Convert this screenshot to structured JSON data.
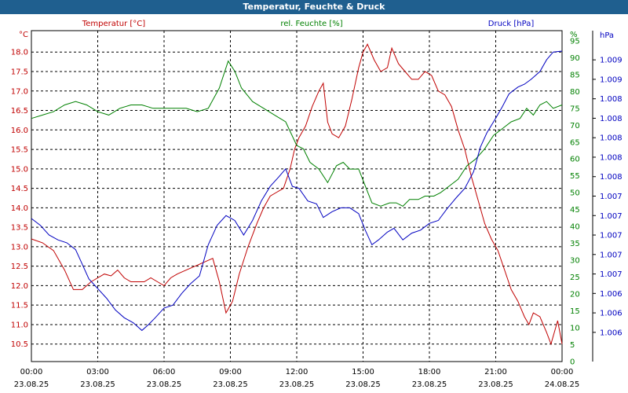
{
  "window": {
    "title": "Temperatur, Feuchte & Druck"
  },
  "chart_data": {
    "type": "line",
    "title": "Temperatur, Feuchte & Druck",
    "x": {
      "range_hours": [
        0,
        24
      ],
      "ticks": [
        {
          "hour": 0,
          "time": "00:00",
          "date": "23.08.25"
        },
        {
          "hour": 3,
          "time": "03:00",
          "date": "23.08.25"
        },
        {
          "hour": 6,
          "time": "06:00",
          "date": "23.08.25"
        },
        {
          "hour": 9,
          "time": "09:00",
          "date": "23.08.25"
        },
        {
          "hour": 12,
          "time": "12:00",
          "date": "23.08.25"
        },
        {
          "hour": 15,
          "time": "15:00",
          "date": "23.08.25"
        },
        {
          "hour": 18,
          "time": "18:00",
          "date": "23.08.25"
        },
        {
          "hour": 21,
          "time": "21:00",
          "date": "23.08.25"
        },
        {
          "hour": 24,
          "time": "00:00",
          "date": "24.08.25"
        }
      ]
    },
    "axes": {
      "temperature": {
        "unit": "°C",
        "label": "Temperatur [°C]",
        "color": "#c00000",
        "range": [
          10.05,
          18.55
        ],
        "ticks": [
          "10.5",
          "11.0",
          "11.5",
          "12.0",
          "12.5",
          "13.0",
          "13.5",
          "14.0",
          "14.5",
          "15.0",
          "15.5",
          "16.0",
          "16.5",
          "17.0",
          "17.5",
          "18.0"
        ]
      },
      "humidity": {
        "unit": "%",
        "label": "rel. Feuchte [%]",
        "color": "#008000",
        "range": [
          0,
          98
        ],
        "ticks": [
          "0",
          "5",
          "10",
          "15",
          "20",
          "25",
          "30",
          "35",
          "40",
          "45",
          "50",
          "55",
          "60",
          "65",
          "70",
          "75",
          "80",
          "85",
          "90",
          "95",
          "%"
        ]
      },
      "pressure": {
        "unit": "hPa",
        "label": "Druck [hPa]",
        "color": "#0000c0",
        "range": [
          1.0058,
          1.0092
        ],
        "ticks": [
          {
            "v": 1.0061,
            "t": "1.006"
          },
          {
            "v": 1.0063,
            "t": "1.006"
          },
          {
            "v": 1.0065,
            "t": "1.006"
          },
          {
            "v": 1.0067,
            "t": "1.007"
          },
          {
            "v": 1.0069,
            "t": "1.007"
          },
          {
            "v": 1.0071,
            "t": "1.007"
          },
          {
            "v": 1.0073,
            "t": "1.007"
          },
          {
            "v": 1.0075,
            "t": "1.007"
          },
          {
            "v": 1.0077,
            "t": "1.008"
          },
          {
            "v": 1.0079,
            "t": "1.008"
          },
          {
            "v": 1.0081,
            "t": "1.008"
          },
          {
            "v": 1.0083,
            "t": "1.008"
          },
          {
            "v": 1.0085,
            "t": "1.008"
          },
          {
            "v": 1.0087,
            "t": "1.009"
          },
          {
            "v": 1.0089,
            "t": "1.009"
          }
        ],
        "unit_label": "hPa"
      }
    },
    "series": [
      {
        "name": "Temperatur [°C]",
        "axis": "temperature",
        "color": "#c00000",
        "points": [
          [
            0,
            13.2
          ],
          [
            0.5,
            13.1
          ],
          [
            1,
            12.9
          ],
          [
            1.5,
            12.4
          ],
          [
            1.9,
            11.9
          ],
          [
            2.3,
            11.9
          ],
          [
            2.7,
            12.1
          ],
          [
            3.0,
            12.2
          ],
          [
            3.3,
            12.3
          ],
          [
            3.6,
            12.25
          ],
          [
            3.9,
            12.4
          ],
          [
            4.2,
            12.2
          ],
          [
            4.5,
            12.1
          ],
          [
            4.8,
            12.1
          ],
          [
            5.1,
            12.1
          ],
          [
            5.4,
            12.2
          ],
          [
            5.7,
            12.1
          ],
          [
            6.0,
            12.0
          ],
          [
            6.3,
            12.2
          ],
          [
            6.6,
            12.3
          ],
          [
            7.0,
            12.4
          ],
          [
            7.4,
            12.5
          ],
          [
            7.8,
            12.6
          ],
          [
            8.2,
            12.7
          ],
          [
            8.5,
            12.1
          ],
          [
            8.8,
            11.3
          ],
          [
            9.1,
            11.6
          ],
          [
            9.4,
            12.3
          ],
          [
            9.8,
            13.0
          ],
          [
            10.2,
            13.6
          ],
          [
            10.5,
            14.0
          ],
          [
            10.8,
            14.3
          ],
          [
            11.1,
            14.4
          ],
          [
            11.4,
            14.5
          ],
          [
            11.7,
            15.0
          ],
          [
            11.9,
            15.5
          ],
          [
            12.1,
            15.8
          ],
          [
            12.4,
            16.1
          ],
          [
            12.7,
            16.6
          ],
          [
            13.0,
            17.0
          ],
          [
            13.2,
            17.2
          ],
          [
            13.4,
            16.2
          ],
          [
            13.6,
            15.9
          ],
          [
            13.9,
            15.8
          ],
          [
            14.2,
            16.1
          ],
          [
            14.5,
            16.8
          ],
          [
            14.8,
            17.6
          ],
          [
            15.0,
            18.0
          ],
          [
            15.2,
            18.2
          ],
          [
            15.5,
            17.8
          ],
          [
            15.8,
            17.5
          ],
          [
            16.1,
            17.6
          ],
          [
            16.3,
            18.1
          ],
          [
            16.6,
            17.7
          ],
          [
            16.9,
            17.5
          ],
          [
            17.2,
            17.3
          ],
          [
            17.5,
            17.3
          ],
          [
            17.8,
            17.5
          ],
          [
            18.1,
            17.4
          ],
          [
            18.4,
            17.0
          ],
          [
            18.7,
            16.9
          ],
          [
            19.0,
            16.6
          ],
          [
            19.3,
            16.0
          ],
          [
            19.6,
            15.5
          ],
          [
            19.9,
            14.8
          ],
          [
            20.2,
            14.2
          ],
          [
            20.5,
            13.6
          ],
          [
            20.8,
            13.2
          ],
          [
            21.1,
            12.9
          ],
          [
            21.4,
            12.4
          ],
          [
            21.7,
            11.9
          ],
          [
            22.0,
            11.6
          ],
          [
            22.3,
            11.2
          ],
          [
            22.5,
            11.0
          ],
          [
            22.7,
            11.3
          ],
          [
            23.0,
            11.2
          ],
          [
            23.3,
            10.8
          ],
          [
            23.5,
            10.5
          ],
          [
            23.8,
            11.1
          ],
          [
            24.0,
            10.5
          ]
        ]
      },
      {
        "name": "rel. Feuchte [%]",
        "axis": "humidity",
        "color": "#008000",
        "points": [
          [
            0,
            72
          ],
          [
            0.5,
            73
          ],
          [
            1,
            74
          ],
          [
            1.5,
            76
          ],
          [
            2,
            77
          ],
          [
            2.5,
            76
          ],
          [
            3,
            74
          ],
          [
            3.5,
            73
          ],
          [
            4,
            75
          ],
          [
            4.5,
            76
          ],
          [
            5,
            76
          ],
          [
            5.5,
            75
          ],
          [
            6,
            75
          ],
          [
            6.5,
            75
          ],
          [
            7,
            75
          ],
          [
            7.5,
            74
          ],
          [
            8,
            75
          ],
          [
            8.5,
            81
          ],
          [
            8.9,
            89
          ],
          [
            9.2,
            86
          ],
          [
            9.5,
            81
          ],
          [
            10,
            77
          ],
          [
            10.5,
            75
          ],
          [
            11,
            73
          ],
          [
            11.5,
            71
          ],
          [
            12,
            64
          ],
          [
            12.3,
            63
          ],
          [
            12.6,
            59
          ],
          [
            13,
            57
          ],
          [
            13.4,
            53
          ],
          [
            13.8,
            58
          ],
          [
            14.1,
            59
          ],
          [
            14.4,
            57
          ],
          [
            14.8,
            57
          ],
          [
            15.1,
            52
          ],
          [
            15.4,
            47
          ],
          [
            15.8,
            46
          ],
          [
            16.2,
            47
          ],
          [
            16.5,
            47
          ],
          [
            16.8,
            46
          ],
          [
            17.1,
            48
          ],
          [
            17.5,
            48
          ],
          [
            17.8,
            49
          ],
          [
            18.2,
            49
          ],
          [
            18.5,
            50
          ],
          [
            18.9,
            52
          ],
          [
            19.3,
            54
          ],
          [
            19.7,
            58
          ],
          [
            20.1,
            60
          ],
          [
            20.5,
            63
          ],
          [
            20.9,
            67
          ],
          [
            21.3,
            69
          ],
          [
            21.7,
            71
          ],
          [
            22.1,
            72
          ],
          [
            22.4,
            75
          ],
          [
            22.7,
            73
          ],
          [
            23.0,
            76
          ],
          [
            23.3,
            77
          ],
          [
            23.6,
            75
          ],
          [
            24.0,
            76
          ]
        ]
      },
      {
        "name": "Druck [hPa]",
        "axis": "pressure",
        "color": "#0000c0",
        "points": [
          [
            0,
            1.00727
          ],
          [
            0.4,
            1.0072
          ],
          [
            0.8,
            1.0071
          ],
          [
            1.2,
            1.00705
          ],
          [
            1.6,
            1.00702
          ],
          [
            2.0,
            1.00695
          ],
          [
            2.3,
            1.0068
          ],
          [
            2.6,
            1.00665
          ],
          [
            3.0,
            1.00655
          ],
          [
            3.4,
            1.00645
          ],
          [
            3.8,
            1.00633
          ],
          [
            4.2,
            1.00625
          ],
          [
            4.6,
            1.0062
          ],
          [
            5.0,
            1.00612
          ],
          [
            5.3,
            1.00618
          ],
          [
            5.6,
            1.00625
          ],
          [
            6.0,
            1.00635
          ],
          [
            6.4,
            1.00638
          ],
          [
            6.8,
            1.0065
          ],
          [
            7.2,
            1.0066
          ],
          [
            7.6,
            1.00668
          ],
          [
            8.0,
            1.007
          ],
          [
            8.4,
            1.0072
          ],
          [
            8.8,
            1.0073
          ],
          [
            9.2,
            1.00725
          ],
          [
            9.6,
            1.0071
          ],
          [
            10.0,
            1.00725
          ],
          [
            10.4,
            1.00745
          ],
          [
            10.8,
            1.0076
          ],
          [
            11.2,
            1.0077
          ],
          [
            11.5,
            1.00778
          ],
          [
            11.8,
            1.0076
          ],
          [
            12.1,
            1.00758
          ],
          [
            12.5,
            1.00745
          ],
          [
            12.9,
            1.00742
          ],
          [
            13.2,
            1.00728
          ],
          [
            13.6,
            1.00734
          ],
          [
            14.0,
            1.00738
          ],
          [
            14.4,
            1.00738
          ],
          [
            14.8,
            1.00732
          ],
          [
            15.1,
            1.00715
          ],
          [
            15.4,
            1.007
          ],
          [
            15.7,
            1.00705
          ],
          [
            16.1,
            1.00713
          ],
          [
            16.4,
            1.00717
          ],
          [
            16.8,
            1.00705
          ],
          [
            17.2,
            1.00712
          ],
          [
            17.6,
            1.00715
          ],
          [
            18.0,
            1.00722
          ],
          [
            18.4,
            1.00725
          ],
          [
            18.8,
            1.00737
          ],
          [
            19.2,
            1.00748
          ],
          [
            19.6,
            1.00758
          ],
          [
            20.0,
            1.00775
          ],
          [
            20.3,
            1.008
          ],
          [
            20.6,
            1.00815
          ],
          [
            21.0,
            1.0083
          ],
          [
            21.3,
            1.00842
          ],
          [
            21.6,
            1.00855
          ],
          [
            22.0,
            1.00862
          ],
          [
            22.3,
            1.00865
          ],
          [
            22.6,
            1.0087
          ],
          [
            23.0,
            1.00878
          ],
          [
            23.3,
            1.0089
          ],
          [
            23.6,
            1.00898
          ],
          [
            24.0,
            1.00899
          ]
        ]
      }
    ]
  }
}
